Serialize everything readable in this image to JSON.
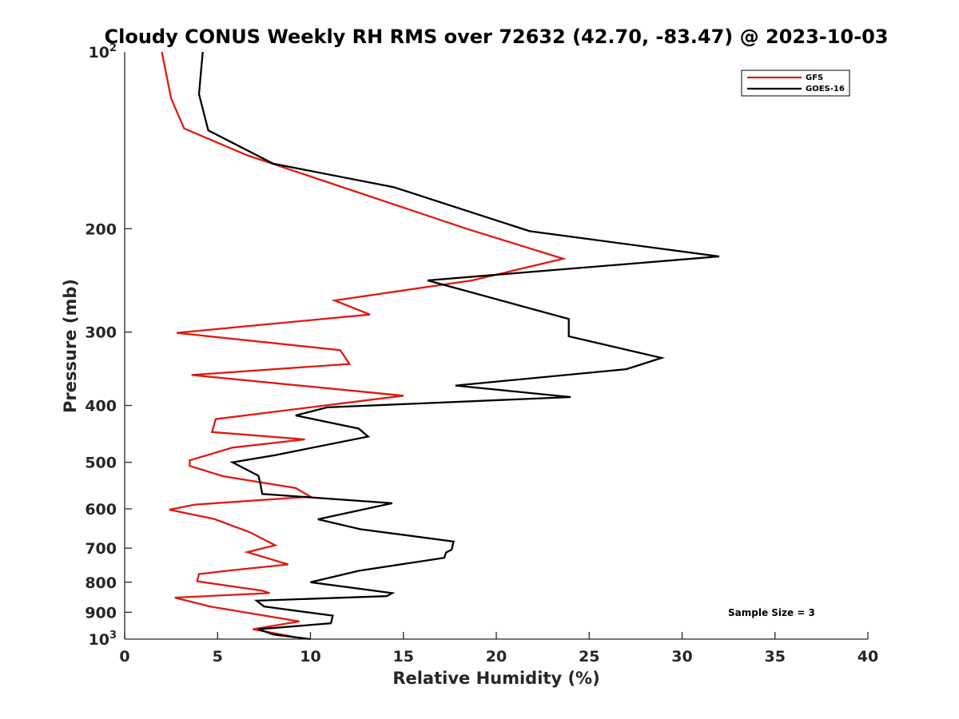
{
  "chart_data": {
    "type": "line",
    "title": "Cloudy CONUS Weekly RH RMS over 72632 (42.70, -83.47) @ 2023-10-03",
    "xlabel": "Relative Humidity (%)",
    "ylabel": "Pressure (mb)",
    "xlim": [
      0,
      40
    ],
    "ylim": [
      100,
      1000
    ],
    "y_scale": "log",
    "y_reversed": true,
    "x_ticks": [
      0,
      5,
      10,
      15,
      20,
      25,
      30,
      35,
      40
    ],
    "x_tick_labels": [
      "0",
      "5",
      "10",
      "15",
      "20",
      "25",
      "30",
      "35",
      "40"
    ],
    "y_ticks": [
      200,
      300,
      400,
      500,
      600,
      700,
      800,
      900
    ],
    "y_tick_labels": [
      "200",
      "300",
      "400",
      "500",
      "600",
      "700",
      "800",
      "900"
    ],
    "y_top_label": {
      "base": "10",
      "exp": "2"
    },
    "y_bottom_label": {
      "base": "10",
      "exp": "3"
    },
    "grid": false,
    "legend_position": "top-right",
    "annotation": "Sample Size = 3",
    "series": [
      {
        "name": "GFS",
        "color": "#e0190f",
        "points": [
          [
            9.0,
            990
          ],
          [
            6.9,
            962
          ],
          [
            9.4,
            933
          ],
          [
            4.6,
            880
          ],
          [
            2.7,
            850
          ],
          [
            7.8,
            835
          ],
          [
            7.4,
            827
          ],
          [
            3.9,
            797
          ],
          [
            4.0,
            775
          ],
          [
            5.5,
            765
          ],
          [
            8.8,
            746
          ],
          [
            6.6,
            711
          ],
          [
            8.1,
            692
          ],
          [
            6.7,
            657
          ],
          [
            4.8,
            624
          ],
          [
            2.4,
            602
          ],
          [
            3.8,
            590
          ],
          [
            10.0,
            572
          ],
          [
            9.2,
            553
          ],
          [
            5.3,
            528
          ],
          [
            3.5,
            507
          ],
          [
            3.5,
            496
          ],
          [
            5.8,
            472
          ],
          [
            9.7,
            457
          ],
          [
            4.7,
            444
          ],
          [
            4.9,
            422
          ],
          [
            15.0,
            385
          ],
          [
            3.6,
            355
          ],
          [
            12.1,
            340
          ],
          [
            11.6,
            322
          ],
          [
            2.8,
            301
          ],
          [
            13.2,
            280
          ],
          [
            11.3,
            265
          ],
          [
            18.7,
            245
          ],
          [
            23.6,
            225
          ],
          [
            18.4,
            200
          ],
          [
            6.6,
            150
          ],
          [
            3.2,
            135
          ],
          [
            2.5,
            120
          ],
          [
            2.0,
            100
          ]
        ]
      },
      {
        "name": "GOES-16",
        "color": "#000000",
        "points": [
          [
            10.0,
            1000
          ],
          [
            8.0,
            982
          ],
          [
            7.2,
            962
          ],
          [
            11.1,
            940
          ],
          [
            11.2,
            912
          ],
          [
            7.5,
            880
          ],
          [
            7.1,
            860
          ],
          [
            14.1,
            845
          ],
          [
            14.4,
            835
          ],
          [
            10.0,
            800
          ],
          [
            11.1,
            785
          ],
          [
            12.6,
            765
          ],
          [
            17.2,
            727
          ],
          [
            17.3,
            712
          ],
          [
            17.6,
            704
          ],
          [
            17.7,
            682
          ],
          [
            12.7,
            650
          ],
          [
            10.4,
            625
          ],
          [
            14.4,
            587
          ],
          [
            7.4,
            566
          ],
          [
            7.3,
            543
          ],
          [
            7.2,
            527
          ],
          [
            5.8,
            500
          ],
          [
            8.1,
            486
          ],
          [
            13.1,
            452
          ],
          [
            12.6,
            438
          ],
          [
            9.2,
            416
          ],
          [
            10.9,
            403
          ],
          [
            24.0,
            387
          ],
          [
            17.8,
            370
          ],
          [
            27.0,
            347
          ],
          [
            28.9,
            332
          ],
          [
            23.9,
            305
          ],
          [
            23.9,
            285
          ],
          [
            16.3,
            245
          ],
          [
            32.0,
            223
          ],
          [
            21.8,
            202
          ],
          [
            14.5,
            170
          ],
          [
            8.0,
            155
          ],
          [
            4.5,
            136
          ],
          [
            4.0,
            118
          ],
          [
            4.2,
            100
          ]
        ]
      }
    ]
  }
}
